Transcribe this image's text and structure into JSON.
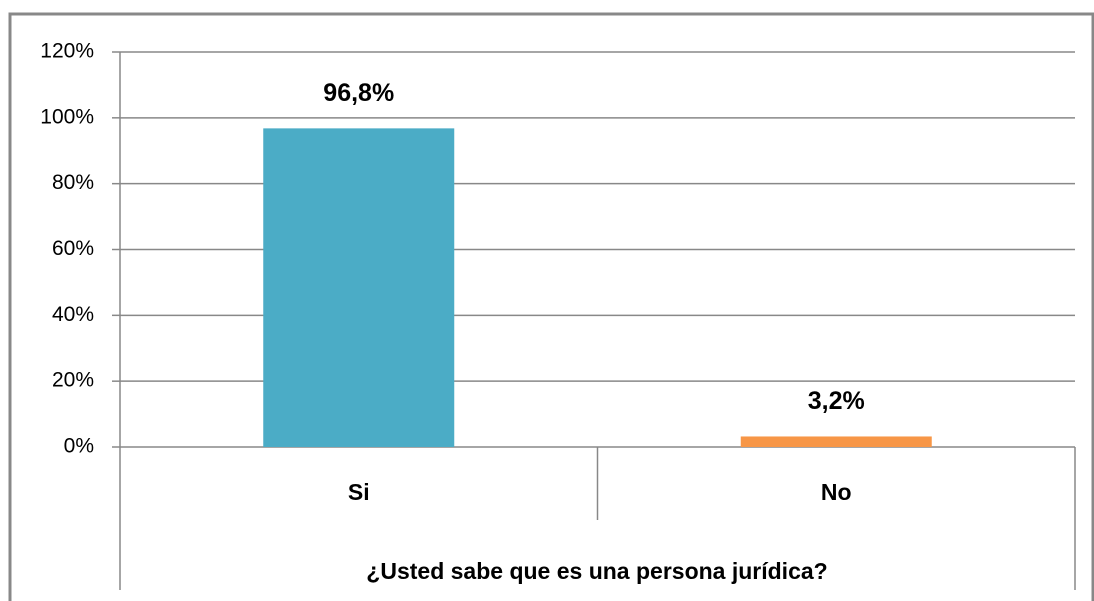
{
  "chart_data": {
    "type": "bar",
    "categories": [
      "Si",
      "No"
    ],
    "values": [
      96.8,
      3.2
    ],
    "value_labels": [
      "96,8%",
      "3,2%"
    ],
    "colors": [
      "#4bacc6",
      "#f79646"
    ],
    "x_label": "¿Usted sabe que es una persona jurídica?",
    "ylim": [
      0,
      120
    ],
    "yticks": [
      {
        "value": 0,
        "label": "0%"
      },
      {
        "value": 20,
        "label": "20%"
      },
      {
        "value": 40,
        "label": "40%"
      },
      {
        "value": 60,
        "label": "60%"
      },
      {
        "value": 80,
        "label": "80%"
      },
      {
        "value": 100,
        "label": "100%"
      },
      {
        "value": 120,
        "label": "120%"
      }
    ],
    "grid": true
  }
}
